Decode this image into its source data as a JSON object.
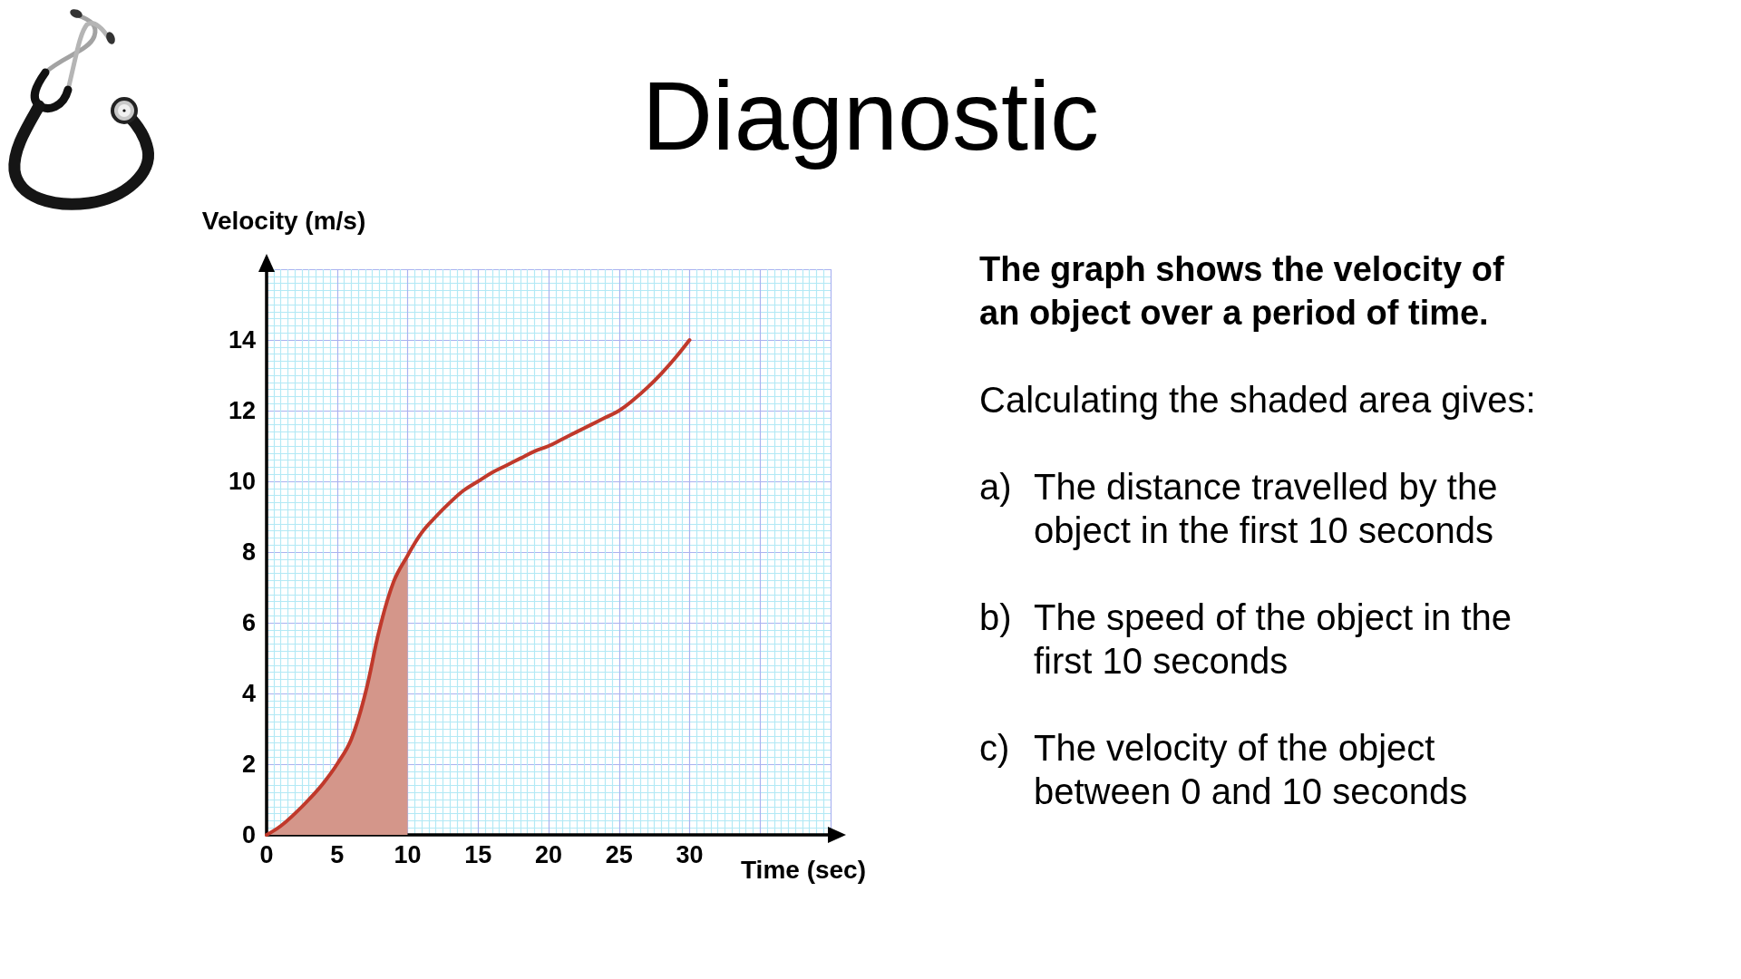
{
  "chart_data": {
    "type": "line",
    "title": "Diagnostic",
    "subtitle": "The graph shows the velocity of an object over a period of time.",
    "xlabel": "Time (sec)",
    "ylabel": "Velocity (m/s)",
    "annotations": [
      "Calculating the shaded area gives:",
      "a) The distance travelled by the object in the first 10 seconds",
      "b) The speed of the object in the first 10 seconds",
      "c) The velocity of the object between 0 and 10 seconds"
    ],
    "series": [
      {
        "type": "area",
        "color": "#d4968a",
        "x": [
          0,
          1,
          2,
          3,
          4,
          5,
          6,
          7,
          8,
          9,
          10
        ],
        "values": [
          0,
          0.25,
          0.6,
          1.0,
          1.45,
          2.0,
          2.7,
          4.0,
          5.8,
          7.15,
          7.9
        ]
      },
      {
        "color": "#c0392b",
        "x": [
          0,
          1,
          2,
          3,
          4,
          5,
          6,
          7,
          8,
          9,
          10,
          11,
          12,
          13,
          14,
          15,
          16,
          17,
          18,
          19,
          20,
          21,
          22,
          23,
          24,
          25,
          26,
          27,
          28,
          29,
          30
        ],
        "values": [
          0,
          0.25,
          0.6,
          1.0,
          1.45,
          2.0,
          2.7,
          4.0,
          5.8,
          7.15,
          7.9,
          8.55,
          9.0,
          9.4,
          9.75,
          10.0,
          10.25,
          10.45,
          10.65,
          10.85,
          11.0,
          11.2,
          11.4,
          11.6,
          11.8,
          12.0,
          12.3,
          12.65,
          13.05,
          13.5,
          14.0
        ]
      }
    ],
    "xlim": [
      0,
      40
    ],
    "ylim": [
      0,
      16
    ],
    "xticks": [
      0,
      {
        "value": 0.5,
        "label": null
      },
      {
        "value": 1,
        "label": null
      },
      {
        "value": 1.5,
        "label": null
      },
      {
        "value": 2,
        "label": null
      },
      {
        "value": 2.5,
        "label": null
      },
      {
        "value": 3,
        "label": null
      },
      {
        "value": 3.5,
        "label": null
      },
      {
        "value": 4,
        "label": null
      },
      {
        "value": 4.5,
        "label": null
      },
      5,
      {
        "value": 5.5,
        "label": null
      },
      {
        "value": 6,
        "label": null
      },
      {
        "value": 6.5,
        "label": null
      },
      {
        "value": 7,
        "label": null
      },
      {
        "value": 7.5,
        "label": null
      },
      {
        "value": 8,
        "label": null
      },
      {
        "value": 8.5,
        "label": null
      },
      {
        "value": 9,
        "label": null
      },
      {
        "value": 9.5,
        "label": null
      },
      10,
      {
        "value": 10.5,
        "label": null
      },
      {
        "value": 11,
        "label": null
      },
      {
        "value": 11.5,
        "label": null
      },
      {
        "value": 12,
        "label": null
      },
      {
        "value": 12.5,
        "label": null
      },
      {
        "value": 13,
        "label": null
      },
      {
        "value": 13.5,
        "label": null
      },
      {
        "value": 14,
        "label": null
      },
      {
        "value": 14.5,
        "label": null
      },
      15,
      {
        "value": 15.5,
        "label": null
      },
      {
        "value": 16,
        "label": null
      },
      {
        "value": 16.5,
        "label": null
      },
      {
        "value": 17,
        "label": null
      },
      {
        "value": 17.5,
        "label": null
      },
      {
        "value": 18,
        "label": null
      },
      {
        "value": 18.5,
        "label": null
      },
      {
        "value": 19,
        "label": null
      },
      {
        "value": 19.5,
        "label": null
      },
      20,
      {
        "value": 20.5,
        "label": null
      },
      {
        "value": 21,
        "label": null
      },
      {
        "value": 21.5,
        "label": null
      },
      {
        "value": 22,
        "label": null
      },
      {
        "value": 22.5,
        "label": null
      },
      {
        "value": 23,
        "label": null
      },
      {
        "value": 23.5,
        "label": null
      },
      {
        "value": 24,
        "label": null
      },
      {
        "value": 24.5,
        "label": null
      },
      25,
      {
        "value": 25.5,
        "label": null
      },
      {
        "value": 26,
        "label": null
      },
      {
        "value": 26.5,
        "label": null
      },
      {
        "value": 27,
        "label": null
      },
      {
        "value": 27.5,
        "label": null
      },
      {
        "value": 28,
        "label": null
      },
      {
        "value": 28.5,
        "label": null
      },
      {
        "value": 29,
        "label": null
      },
      {
        "value": 29.5,
        "label": null
      },
      30,
      {
        "value": 30.5,
        "label": null
      },
      {
        "value": 31,
        "label": null
      },
      {
        "value": 31.5,
        "label": null
      },
      {
        "value": 32,
        "label": null
      },
      {
        "value": 32.5,
        "label": null
      },
      {
        "value": 33,
        "label": null
      },
      {
        "value": 33.5,
        "label": null
      },
      {
        "value": 34,
        "label": null
      },
      {
        "value": 34.5,
        "label": null
      },
      {
        "value": 35,
        "label": null
      },
      {
        "value": 35.5,
        "label": null
      },
      {
        "value": 36,
        "label": null
      },
      {
        "value": 36.5,
        "label": null
      },
      {
        "value": 37,
        "label": null
      },
      {
        "value": 37.5,
        "label": null
      },
      {
        "value": 38,
        "label": null
      },
      {
        "value": 38.5,
        "label": null
      },
      {
        "value": 39,
        "label": null
      },
      {
        "value": 39.5,
        "label": null
      },
      {
        "value": 40,
        "label": null
      }
    ],
    "yticks": [
      0,
      {
        "value": 0.2,
        "label": null
      },
      {
        "value": 0.4,
        "label": null
      },
      {
        "value": 0.6,
        "label": null
      },
      {
        "value": 0.8,
        "label": null
      },
      {
        "value": 1,
        "label": null
      },
      {
        "value": 1.2,
        "label": null
      },
      {
        "value": 1.4,
        "label": null
      },
      {
        "value": 1.6,
        "label": null
      },
      {
        "value": 1.8,
        "label": null
      },
      2,
      {
        "value": 2.2,
        "label": null
      },
      {
        "value": 2.4,
        "label": null
      },
      {
        "value": 2.6,
        "label": null
      },
      {
        "value": 2.8,
        "label": null
      },
      {
        "value": 3,
        "label": null
      },
      {
        "value": 3.2,
        "label": null
      },
      {
        "value": 3.4,
        "label": null
      },
      {
        "value": 3.6,
        "label": null
      },
      {
        "value": 3.8,
        "label": null
      },
      4,
      {
        "value": 4.2,
        "label": null
      },
      {
        "value": 4.4,
        "label": null
      },
      {
        "value": 4.6,
        "label": null
      },
      {
        "value": 4.8,
        "label": null
      },
      {
        "value": 5,
        "label": null
      },
      {
        "value": 5.2,
        "label": null
      },
      {
        "value": 5.4,
        "label": null
      },
      {
        "value": 5.6,
        "label": null
      },
      {
        "value": 5.8,
        "label": null
      },
      6,
      {
        "value": 6.2,
        "label": null
      },
      {
        "value": 6.4,
        "label": null
      },
      {
        "value": 6.6,
        "label": null
      },
      {
        "value": 6.8,
        "label": null
      },
      {
        "value": 7,
        "label": null
      },
      {
        "value": 7.2,
        "label": null
      },
      {
        "value": 7.4,
        "label": null
      },
      {
        "value": 7.6,
        "label": null
      },
      {
        "value": 7.8,
        "label": null
      },
      8,
      {
        "value": 8.2,
        "label": null
      },
      {
        "value": 8.4,
        "label": null
      },
      {
        "value": 8.6,
        "label": null
      },
      {
        "value": 8.8,
        "label": null
      },
      {
        "value": 9,
        "label": null
      },
      {
        "value": 9.2,
        "label": null
      },
      {
        "value": 9.4,
        "label": null
      },
      {
        "value": 9.6,
        "label": null
      },
      {
        "value": 9.8,
        "label": null
      },
      10,
      {
        "value": 10.2,
        "label": null
      },
      {
        "value": 10.4,
        "label": null
      },
      {
        "value": 10.6,
        "label": null
      },
      {
        "value": 10.8,
        "label": null
      },
      {
        "value": 11,
        "label": null
      },
      {
        "value": 11.2,
        "label": null
      },
      {
        "value": 11.4,
        "label": null
      },
      {
        "value": 11.6,
        "label": null
      },
      {
        "value": 11.8,
        "label": null
      },
      12,
      {
        "value": 12.2,
        "label": null
      },
      {
        "value": 12.4,
        "label": null
      },
      {
        "value": 12.6,
        "label": null
      },
      {
        "value": 12.8,
        "label": null
      },
      {
        "value": 13,
        "label": null
      },
      {
        "value": 13.2,
        "label": null
      },
      {
        "value": 13.4,
        "label": null
      },
      {
        "value": 13.6,
        "label": null
      },
      {
        "value": 13.8,
        "label": null
      },
      14,
      {
        "value": 14.2,
        "label": null
      },
      {
        "value": 14.4,
        "label": null
      },
      {
        "value": 14.6,
        "label": null
      },
      {
        "value": 14.8,
        "label": null
      },
      {
        "value": 15,
        "label": null
      },
      {
        "value": 15.2,
        "label": null
      },
      {
        "value": 15.4,
        "label": null
      },
      {
        "value": 15.6,
        "label": null
      },
      {
        "value": 15.8,
        "label": null
      },
      {
        "value": 16,
        "label": null
      }
    ],
    "grid": true,
    "marker": "none"
  }
}
